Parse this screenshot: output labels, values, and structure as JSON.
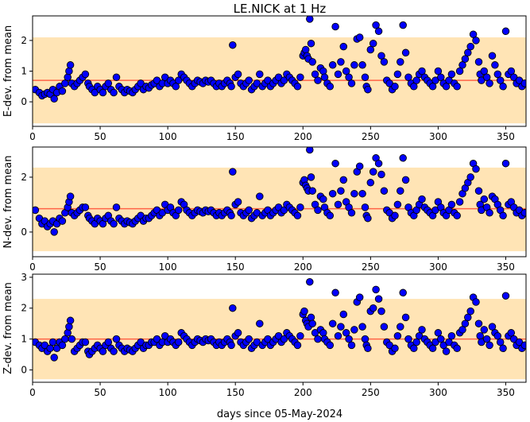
{
  "title": "LE.NICK at 1 Hz",
  "xlabel": "days since 05-May-2024",
  "colors": {
    "band": "#ffe4b5",
    "mean_line": "#ff6347",
    "marker_face": "#0000ff",
    "marker_edge": "#000000"
  },
  "chart_data": [
    {
      "type": "scatter",
      "id": "e",
      "ylabel": "E-dev. from mean",
      "xlim": [
        0,
        365
      ],
      "ylim": [
        -0.8,
        2.8
      ],
      "xticks": [
        0,
        50,
        100,
        150,
        200,
        250,
        300,
        350
      ],
      "yticks": [
        0,
        1,
        2
      ],
      "mean": 0.7,
      "band": [
        -0.7,
        2.1
      ],
      "x": [
        2,
        5,
        7,
        9,
        11,
        13,
        15,
        16,
        18,
        20,
        22,
        24,
        26,
        27,
        28,
        29,
        31,
        33,
        35,
        37,
        39,
        41,
        42,
        44,
        46,
        48,
        50,
        52,
        54,
        56,
        58,
        60,
        62,
        64,
        66,
        68,
        70,
        72,
        74,
        76,
        78,
        80,
        82,
        84,
        86,
        88,
        90,
        92,
        94,
        96,
        98,
        100,
        102,
        104,
        106,
        108,
        110,
        112,
        114,
        116,
        118,
        120,
        122,
        124,
        126,
        128,
        130,
        132,
        134,
        136,
        138,
        140,
        142,
        144,
        146,
        147,
        148,
        150,
        152,
        154,
        156,
        158,
        160,
        162,
        164,
        166,
        168,
        170,
        172,
        174,
        176,
        178,
        180,
        182,
        184,
        186,
        188,
        190,
        192,
        194,
        196,
        198,
        200,
        201,
        202,
        203,
        204,
        205,
        206,
        207,
        209,
        211,
        213,
        215,
        216,
        218,
        220,
        222,
        224,
        226,
        228,
        230,
        232,
        234,
        236,
        238,
        240,
        242,
        244,
        246,
        247,
        248,
        250,
        252,
        254,
        256,
        258,
        260,
        262,
        264,
        266,
        268,
        270,
        272,
        274,
        276,
        278,
        280,
        282,
        284,
        286,
        288,
        290,
        292,
        294,
        296,
        298,
        300,
        302,
        304,
        306,
        308,
        310,
        312,
        314,
        316,
        318,
        320,
        322,
        324,
        326,
        328,
        330,
        331,
        332,
        334,
        336,
        338,
        340,
        342,
        344,
        346,
        348,
        350,
        352,
        354,
        356,
        358,
        360,
        362,
        364
      ],
      "y": [
        0.4,
        0.3,
        0.2,
        0.25,
        0.3,
        0.25,
        0.4,
        0.1,
        0.3,
        0.5,
        0.35,
        0.6,
        0.8,
        1.0,
        1.2,
        0.6,
        0.5,
        0.6,
        0.7,
        0.8,
        0.9,
        0.6,
        0.5,
        0.4,
        0.3,
        0.5,
        0.4,
        0.3,
        0.5,
        0.6,
        0.4,
        0.3,
        0.8,
        0.5,
        0.4,
        0.3,
        0.4,
        0.35,
        0.3,
        0.4,
        0.5,
        0.6,
        0.4,
        0.5,
        0.45,
        0.55,
        0.6,
        0.7,
        0.5,
        0.6,
        0.8,
        0.6,
        0.7,
        0.6,
        0.5,
        0.7,
        0.9,
        0.8,
        0.7,
        0.6,
        0.5,
        0.6,
        0.7,
        0.65,
        0.6,
        0.7,
        0.65,
        0.7,
        0.6,
        0.5,
        0.6,
        0.5,
        0.6,
        0.7,
        0.6,
        0.5,
        1.85,
        0.8,
        0.9,
        0.6,
        0.5,
        0.6,
        0.7,
        0.4,
        0.5,
        0.6,
        0.9,
        0.5,
        0.6,
        0.7,
        0.5,
        0.6,
        0.7,
        0.8,
        0.6,
        0.7,
        0.9,
        0.8,
        0.7,
        0.6,
        0.5,
        0.8,
        1.5,
        1.6,
        1.7,
        1.5,
        1.4,
        2.7,
        1.9,
        1.3,
        0.9,
        0.7,
        1.1,
        1.0,
        0.8,
        0.6,
        0.5,
        1.2,
        2.45,
        0.9,
        1.3,
        1.8,
        1.0,
        0.8,
        0.6,
        1.2,
        2.05,
        2.1,
        1.2,
        0.8,
        0.5,
        0.4,
        1.7,
        1.9,
        2.5,
        2.3,
        1.5,
        1.3,
        0.7,
        0.6,
        0.4,
        0.5,
        0.9,
        1.3,
        2.5,
        1.6,
        0.8,
        0.6,
        0.5,
        0.7,
        0.9,
        1.0,
        0.8,
        0.7,
        0.6,
        0.5,
        0.7,
        1.0,
        0.8,
        0.6,
        0.5,
        0.7,
        0.9,
        0.6,
        0.5,
        1.0,
        1.2,
        1.4,
        1.6,
        1.8,
        2.2,
        2.0,
        1.3,
        0.9,
        0.7,
        1.0,
        0.8,
        0.6,
        1.5,
        1.2,
        0.9,
        0.7,
        0.5,
        2.3,
        0.9,
        1.0,
        0.8,
        0.6,
        0.7,
        0.5,
        0.6
      ]
    },
    {
      "type": "scatter",
      "id": "n",
      "ylabel": "N-dev. from mean",
      "xlim": [
        0,
        365
      ],
      "ylim": [
        -0.9,
        3.1
      ],
      "xticks": [
        0,
        50,
        100,
        150,
        200,
        250,
        300,
        350
      ],
      "yticks": [
        0,
        2
      ],
      "mean": 0.85,
      "band": [
        -0.7,
        2.35
      ],
      "x": [
        2,
        5,
        7,
        9,
        11,
        13,
        15,
        16,
        18,
        20,
        22,
        24,
        26,
        27,
        28,
        29,
        31,
        33,
        35,
        37,
        39,
        41,
        42,
        44,
        46,
        48,
        50,
        52,
        54,
        56,
        58,
        60,
        62,
        64,
        66,
        68,
        70,
        72,
        74,
        76,
        78,
        80,
        82,
        84,
        86,
        88,
        90,
        92,
        94,
        96,
        98,
        100,
        102,
        104,
        106,
        108,
        110,
        112,
        114,
        116,
        118,
        120,
        122,
        124,
        126,
        128,
        130,
        132,
        134,
        136,
        138,
        140,
        142,
        144,
        146,
        147,
        148,
        150,
        152,
        154,
        156,
        158,
        160,
        162,
        164,
        166,
        168,
        170,
        172,
        174,
        176,
        178,
        180,
        182,
        184,
        186,
        188,
        190,
        192,
        194,
        196,
        198,
        200,
        201,
        202,
        203,
        204,
        205,
        206,
        207,
        209,
        211,
        213,
        215,
        216,
        218,
        220,
        222,
        224,
        226,
        228,
        230,
        232,
        234,
        236,
        238,
        240,
        242,
        244,
        246,
        247,
        248,
        250,
        252,
        254,
        256,
        258,
        260,
        262,
        264,
        266,
        268,
        270,
        272,
        274,
        276,
        278,
        280,
        282,
        284,
        286,
        288,
        290,
        292,
        294,
        296,
        298,
        300,
        302,
        304,
        306,
        308,
        310,
        312,
        314,
        316,
        318,
        320,
        322,
        324,
        326,
        328,
        330,
        331,
        332,
        334,
        336,
        338,
        340,
        342,
        344,
        346,
        348,
        350,
        352,
        354,
        356,
        358,
        360,
        362,
        364
      ],
      "y": [
        0.8,
        0.5,
        0.3,
        0.4,
        0.2,
        0.3,
        0.4,
        0.0,
        0.3,
        0.5,
        0.4,
        0.7,
        0.9,
        1.1,
        1.3,
        0.7,
        0.6,
        0.7,
        0.8,
        0.9,
        0.9,
        0.6,
        0.5,
        0.4,
        0.3,
        0.5,
        0.4,
        0.3,
        0.5,
        0.6,
        0.4,
        0.3,
        0.9,
        0.5,
        0.4,
        0.3,
        0.4,
        0.35,
        0.3,
        0.4,
        0.5,
        0.6,
        0.4,
        0.5,
        0.5,
        0.6,
        0.7,
        0.8,
        0.6,
        0.7,
        1.0,
        0.8,
        0.9,
        0.7,
        0.6,
        0.8,
        1.1,
        1.0,
        0.8,
        0.7,
        0.6,
        0.7,
        0.8,
        0.75,
        0.7,
        0.8,
        0.75,
        0.8,
        0.7,
        0.6,
        0.7,
        0.6,
        0.7,
        0.8,
        0.7,
        0.6,
        2.2,
        1.0,
        1.1,
        0.7,
        0.6,
        0.7,
        0.8,
        0.5,
        0.6,
        0.7,
        1.3,
        0.6,
        0.7,
        0.8,
        0.6,
        0.7,
        0.8,
        0.9,
        0.7,
        0.8,
        1.0,
        0.9,
        0.8,
        0.7,
        0.6,
        0.9,
        1.8,
        1.9,
        1.7,
        1.6,
        1.5,
        3.0,
        2.0,
        1.5,
        1.0,
        0.8,
        1.3,
        1.2,
        0.9,
        0.7,
        0.6,
        1.4,
        2.5,
        1.0,
        1.5,
        1.9,
        1.1,
        0.9,
        0.7,
        1.4,
        2.2,
        2.4,
        1.4,
        0.9,
        0.6,
        0.5,
        1.8,
        2.2,
        2.7,
        2.5,
        2.1,
        1.5,
        0.8,
        0.7,
        0.5,
        0.6,
        1.0,
        1.5,
        2.7,
        1.9,
        0.9,
        0.7,
        0.6,
        0.8,
        1.0,
        1.2,
        0.9,
        0.8,
        0.7,
        0.6,
        0.8,
        1.1,
        0.9,
        0.7,
        0.6,
        0.8,
        1.0,
        0.7,
        0.6,
        1.1,
        1.4,
        1.6,
        1.8,
        2.0,
        2.5,
        2.3,
        1.5,
        1.0,
        0.8,
        1.2,
        0.9,
        0.7,
        1.3,
        1.2,
        1.0,
        0.8,
        0.6,
        2.5,
        1.0,
        1.1,
        0.9,
        0.7,
        0.8,
        0.6,
        0.7
      ]
    },
    {
      "type": "scatter",
      "id": "z",
      "ylabel": "Z-dev. from mean",
      "xlim": [
        0,
        365
      ],
      "ylim": [
        -0.4,
        3.1
      ],
      "xticks": [
        0,
        50,
        100,
        150,
        200,
        250,
        300,
        350
      ],
      "yticks": [
        0,
        1,
        2,
        3
      ],
      "mean": 1.0,
      "band": [
        -0.3,
        2.3
      ],
      "x": [
        2,
        5,
        7,
        9,
        11,
        13,
        15,
        16,
        18,
        20,
        22,
        24,
        26,
        27,
        28,
        29,
        31,
        33,
        35,
        37,
        39,
        41,
        42,
        44,
        46,
        48,
        50,
        52,
        54,
        56,
        58,
        60,
        62,
        64,
        66,
        68,
        70,
        72,
        74,
        76,
        78,
        80,
        82,
        84,
        86,
        88,
        90,
        92,
        94,
        96,
        98,
        100,
        102,
        104,
        106,
        108,
        110,
        112,
        114,
        116,
        118,
        120,
        122,
        124,
        126,
        128,
        130,
        132,
        134,
        136,
        138,
        140,
        142,
        144,
        146,
        147,
        148,
        150,
        152,
        154,
        156,
        158,
        160,
        162,
        164,
        166,
        168,
        170,
        172,
        174,
        176,
        178,
        180,
        182,
        184,
        186,
        188,
        190,
        192,
        194,
        196,
        198,
        200,
        201,
        202,
        203,
        204,
        205,
        206,
        207,
        209,
        211,
        213,
        215,
        216,
        218,
        220,
        222,
        224,
        226,
        228,
        230,
        232,
        234,
        236,
        238,
        240,
        242,
        244,
        246,
        247,
        248,
        250,
        252,
        254,
        256,
        258,
        260,
        262,
        264,
        266,
        268,
        270,
        272,
        274,
        276,
        278,
        280,
        282,
        284,
        286,
        288,
        290,
        292,
        294,
        296,
        298,
        300,
        302,
        304,
        306,
        308,
        310,
        312,
        314,
        316,
        318,
        320,
        322,
        324,
        326,
        328,
        330,
        331,
        332,
        334,
        336,
        338,
        340,
        342,
        344,
        346,
        348,
        350,
        352,
        354,
        356,
        358,
        360,
        362,
        364
      ],
      "y": [
        0.9,
        0.8,
        0.7,
        0.8,
        0.6,
        0.7,
        0.9,
        0.4,
        0.7,
        0.9,
        0.8,
        1.0,
        1.2,
        1.4,
        1.6,
        1.0,
        0.6,
        0.7,
        0.8,
        0.9,
        0.9,
        0.6,
        0.5,
        0.6,
        0.7,
        0.8,
        0.7,
        0.6,
        0.8,
        0.9,
        0.7,
        0.6,
        1.0,
        0.8,
        0.7,
        0.6,
        0.7,
        0.65,
        0.6,
        0.7,
        0.8,
        0.9,
        0.7,
        0.8,
        0.8,
        0.9,
        0.9,
        1.0,
        0.8,
        0.9,
        1.1,
        0.9,
        1.0,
        0.9,
        0.8,
        0.9,
        1.2,
        1.1,
        1.0,
        0.9,
        0.8,
        0.9,
        1.0,
        0.95,
        0.9,
        1.0,
        0.95,
        1.0,
        0.9,
        0.8,
        0.9,
        0.8,
        0.9,
        1.0,
        0.9,
        0.8,
        2.0,
        1.1,
        1.2,
        0.9,
        0.8,
        0.9,
        1.0,
        0.7,
        0.8,
        0.9,
        1.5,
        0.8,
        0.9,
        1.0,
        0.8,
        0.9,
        1.0,
        1.1,
        0.9,
        1.0,
        1.2,
        1.1,
        1.0,
        0.9,
        0.8,
        1.1,
        1.8,
        1.9,
        1.6,
        1.5,
        1.4,
        2.85,
        1.7,
        1.5,
        1.2,
        1.0,
        1.3,
        1.2,
        1.0,
        0.9,
        0.8,
        1.5,
        2.5,
        1.1,
        1.4,
        1.8,
        1.2,
        1.0,
        0.8,
        1.3,
        2.2,
        2.35,
        1.4,
        1.0,
        0.8,
        0.7,
        1.9,
        2.0,
        2.6,
        2.3,
        1.9,
        1.4,
        0.9,
        0.8,
        0.6,
        0.7,
        1.1,
        1.4,
        2.5,
        1.7,
        1.0,
        0.8,
        0.7,
        0.9,
        1.1,
        1.3,
        1.0,
        0.9,
        0.8,
        0.7,
        0.9,
        1.2,
        1.0,
        0.8,
        0.6,
        0.9,
        1.1,
        0.8,
        0.7,
        1.2,
        1.3,
        1.5,
        1.7,
        1.9,
        2.35,
        2.2,
        1.5,
        1.1,
        0.9,
        1.3,
        1.0,
        0.8,
        1.4,
        1.2,
        1.1,
        0.9,
        0.7,
        2.4,
        1.1,
        1.2,
        1.0,
        0.8,
        0.9,
        0.7,
        0.8
      ]
    }
  ]
}
